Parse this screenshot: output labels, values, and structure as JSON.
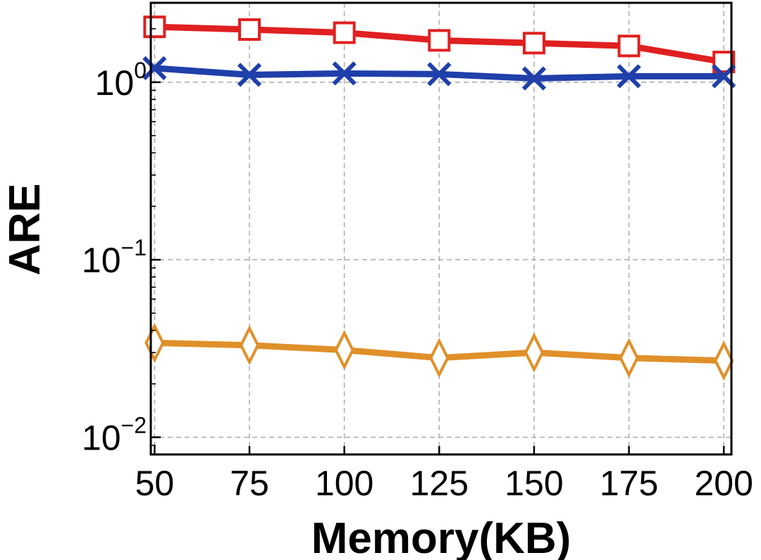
{
  "chart_data": {
    "type": "line",
    "xlabel": "Memory(KB)",
    "ylabel": "ARE",
    "x": [
      50,
      75,
      100,
      125,
      150,
      175,
      200
    ],
    "xlim": [
      49,
      202
    ],
    "ylim": [
      0.008,
      2.8
    ],
    "yscale": "log",
    "grid": true,
    "y_ticks": [
      {
        "value": 1,
        "base": "10",
        "exp": "0"
      },
      {
        "value": 0.1,
        "base": "10",
        "exp": "−1"
      },
      {
        "value": 0.01,
        "base": "10",
        "exp": "−2"
      }
    ],
    "series": [
      {
        "color": "#e02020",
        "marker": "square",
        "values": [
          2.05,
          1.98,
          1.9,
          1.72,
          1.66,
          1.6,
          1.3
        ]
      },
      {
        "color": "#1f3faa",
        "marker": "x",
        "values": [
          1.2,
          1.1,
          1.12,
          1.11,
          1.05,
          1.08,
          1.08
        ]
      },
      {
        "color": "#e0902a",
        "marker": "diamond",
        "values": [
          0.034,
          0.033,
          0.031,
          0.028,
          0.03,
          0.028,
          0.027
        ]
      }
    ]
  }
}
